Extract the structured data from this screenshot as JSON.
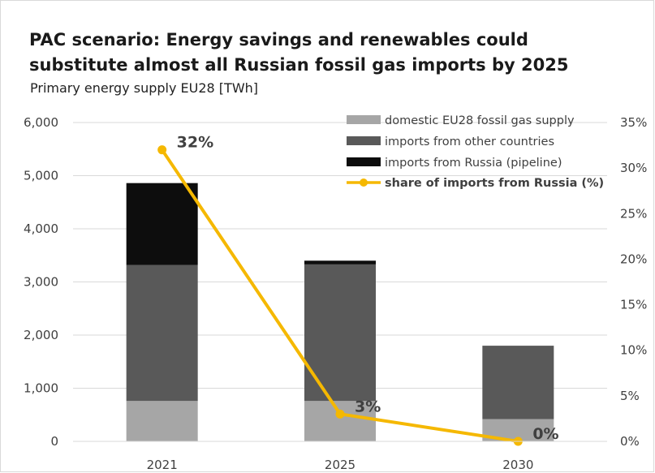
{
  "header": {
    "title": "PAC scenario: Energy savings and renewables could substitute almost all Russian fossil gas imports by 2025",
    "subtitle": "Primary energy supply EU28 [TWh]"
  },
  "chart_data": {
    "type": "bar",
    "stacked": true,
    "categories": [
      "2021",
      "2025",
      "2030"
    ],
    "series": [
      {
        "name": "domestic EU28 fossil gas supply",
        "values": [
          760,
          760,
          420
        ],
        "color": "#a6a6a6"
      },
      {
        "name": "imports from other countries",
        "values": [
          2560,
          2570,
          1380
        ],
        "color": "#595959"
      },
      {
        "name": "imports from Russia (pipeline)",
        "values": [
          1540,
          70,
          0
        ],
        "color": "#0d0d0d"
      }
    ],
    "line_series": {
      "name": "share of imports from Russia (%)",
      "axis": "secondary",
      "values": [
        32,
        3,
        0
      ],
      "labels": [
        "32%",
        "3%",
        "0%"
      ],
      "color": "#f5b800"
    },
    "y_axis": {
      "ylim": [
        0,
        6000
      ],
      "ticks": [
        0,
        1000,
        2000,
        3000,
        4000,
        5000,
        6000
      ],
      "tick_labels": [
        "0",
        "1,000",
        "2,000",
        "3,000",
        "4,000",
        "5,000",
        "6,000"
      ]
    },
    "y2_axis": {
      "ylim": [
        0,
        35
      ],
      "ticks": [
        0,
        5,
        10,
        15,
        20,
        25,
        30,
        35
      ],
      "tick_labels": [
        "0%",
        "5%",
        "10%",
        "15%",
        "20%",
        "25%",
        "30%",
        "35%"
      ]
    },
    "grid": "horizontal",
    "legend_position": "top-right"
  }
}
